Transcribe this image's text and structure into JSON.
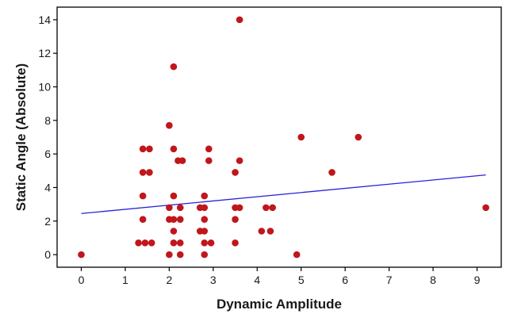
{
  "chart_data": {
    "type": "scatter",
    "title": "",
    "xlabel": "Dynamic Amplitude",
    "ylabel": "Static Angle (Absolute)",
    "xlim": [
      -0.55,
      9.55
    ],
    "ylim": [
      -0.75,
      14.75
    ],
    "xticks": [
      0,
      1,
      2,
      3,
      4,
      5,
      6,
      7,
      8,
      9
    ],
    "yticks": [
      0,
      2,
      4,
      6,
      8,
      10,
      12,
      14
    ],
    "grid": false,
    "legend": "none",
    "colors": {
      "points": "#c0161c",
      "fit_line": "#2a22d8",
      "axes": "#000000"
    },
    "points": [
      {
        "x": 0.0,
        "y": 0.0
      },
      {
        "x": 1.3,
        "y": 0.7
      },
      {
        "x": 1.45,
        "y": 0.7
      },
      {
        "x": 1.6,
        "y": 0.7
      },
      {
        "x": 1.4,
        "y": 2.1
      },
      {
        "x": 1.4,
        "y": 3.5
      },
      {
        "x": 1.4,
        "y": 4.9
      },
      {
        "x": 1.4,
        "y": 6.3
      },
      {
        "x": 1.55,
        "y": 4.9
      },
      {
        "x": 1.55,
        "y": 6.3
      },
      {
        "x": 2.0,
        "y": 0.0
      },
      {
        "x": 2.1,
        "y": 0.7
      },
      {
        "x": 2.25,
        "y": 0.0
      },
      {
        "x": 2.25,
        "y": 0.7
      },
      {
        "x": 2.1,
        "y": 1.4
      },
      {
        "x": 2.0,
        "y": 2.1
      },
      {
        "x": 2.1,
        "y": 2.1
      },
      {
        "x": 2.25,
        "y": 2.1
      },
      {
        "x": 2.0,
        "y": 2.8
      },
      {
        "x": 2.25,
        "y": 2.8
      },
      {
        "x": 2.1,
        "y": 3.5
      },
      {
        "x": 2.1,
        "y": 6.3
      },
      {
        "x": 2.2,
        "y": 5.6
      },
      {
        "x": 2.3,
        "y": 5.6
      },
      {
        "x": 2.0,
        "y": 7.7
      },
      {
        "x": 2.1,
        "y": 11.2
      },
      {
        "x": 2.7,
        "y": 1.4
      },
      {
        "x": 2.8,
        "y": 1.4
      },
      {
        "x": 2.7,
        "y": 2.8
      },
      {
        "x": 2.8,
        "y": 2.8
      },
      {
        "x": 2.8,
        "y": 2.1
      },
      {
        "x": 2.8,
        "y": 3.5
      },
      {
        "x": 2.8,
        "y": 0.7
      },
      {
        "x": 2.95,
        "y": 0.7
      },
      {
        "x": 2.8,
        "y": 0.0
      },
      {
        "x": 2.9,
        "y": 5.6
      },
      {
        "x": 2.9,
        "y": 6.3
      },
      {
        "x": 3.5,
        "y": 0.7
      },
      {
        "x": 3.5,
        "y": 2.1
      },
      {
        "x": 3.5,
        "y": 2.8
      },
      {
        "x": 3.6,
        "y": 2.8
      },
      {
        "x": 3.5,
        "y": 4.9
      },
      {
        "x": 3.6,
        "y": 5.6
      },
      {
        "x": 3.6,
        "y": 14.0
      },
      {
        "x": 4.1,
        "y": 1.4
      },
      {
        "x": 4.2,
        "y": 2.8
      },
      {
        "x": 4.3,
        "y": 1.4
      },
      {
        "x": 4.35,
        "y": 2.8
      },
      {
        "x": 4.9,
        "y": 0.0
      },
      {
        "x": 5.0,
        "y": 7.0
      },
      {
        "x": 5.7,
        "y": 4.9
      },
      {
        "x": 6.3,
        "y": 7.0
      },
      {
        "x": 9.2,
        "y": 2.8
      }
    ],
    "fit_line": {
      "x": [
        0,
        9.2
      ],
      "y": [
        2.45,
        4.75
      ]
    }
  }
}
